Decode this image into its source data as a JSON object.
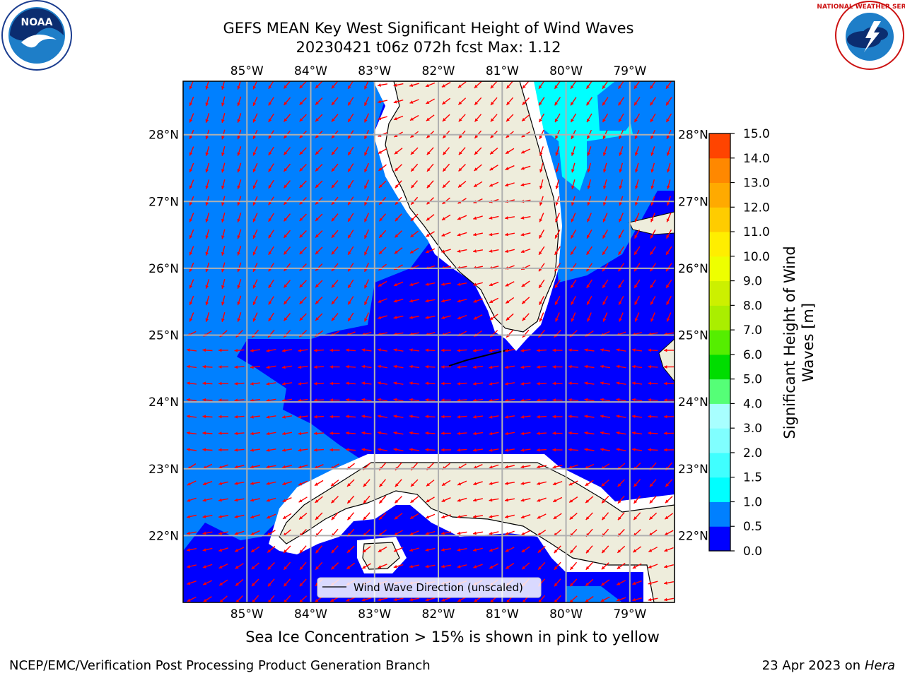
{
  "title": {
    "line1": "GEFS MEAN Key West Significant Height of Wind Waves",
    "line2": "20230421 t06z 072h fcst    Max: 1.12"
  },
  "logos": {
    "left": "NOAA",
    "right": "NATIONAL WEATHER SERVICE",
    "left_icon": "noaa-logo-icon",
    "right_icon": "nws-logo-icon"
  },
  "map": {
    "lon_labels": [
      "85°W",
      "84°W",
      "83°W",
      "82°W",
      "81°W",
      "80°W",
      "79°W"
    ],
    "lat_labels": [
      "28°N",
      "27°N",
      "26°N",
      "25°N",
      "24°N",
      "23°N",
      "22°N"
    ],
    "lon_range": [
      -86.0,
      -78.3
    ],
    "lat_range": [
      21.0,
      28.8
    ],
    "colors": {
      "water_low": "#0000ff",
      "water_mid": "#0080ff",
      "water_high": "#00ffff",
      "land": "#eeeddc",
      "arrows": "#ff0000",
      "grid": "#b0b0b0"
    }
  },
  "legend": {
    "label": "Wind Wave Direction (unscaled)"
  },
  "colorbar": {
    "label_line1": "Significant Height of Wind",
    "label_line2": "Waves [m]",
    "ticks": [
      "0.0",
      "0.5",
      "1.0",
      "1.5",
      "2.0",
      "3.0",
      "4.0",
      "5.0",
      "6.0",
      "7.0",
      "8.0",
      "9.0",
      "10.0",
      "11.0",
      "12.0",
      "13.0",
      "14.0",
      "15.0"
    ],
    "colors": [
      "#0000ff",
      "#0080ff",
      "#00ffff",
      "#40ffff",
      "#80ffff",
      "#a8ffff",
      "#55ff77",
      "#00dd00",
      "#55ee00",
      "#aaee00",
      "#ccf000",
      "#eeff00",
      "#ffee00",
      "#ffcc00",
      "#ffaa00",
      "#ff8800",
      "#ff4400",
      "#ff0000"
    ]
  },
  "note": "Sea Ice Concentration > 15% is shown in pink to yellow",
  "footer": {
    "left": "NCEP/EMC/Verification Post Processing Product Generation Branch",
    "right_date": "23 Apr 2023 on",
    "right_host": "Hera"
  }
}
